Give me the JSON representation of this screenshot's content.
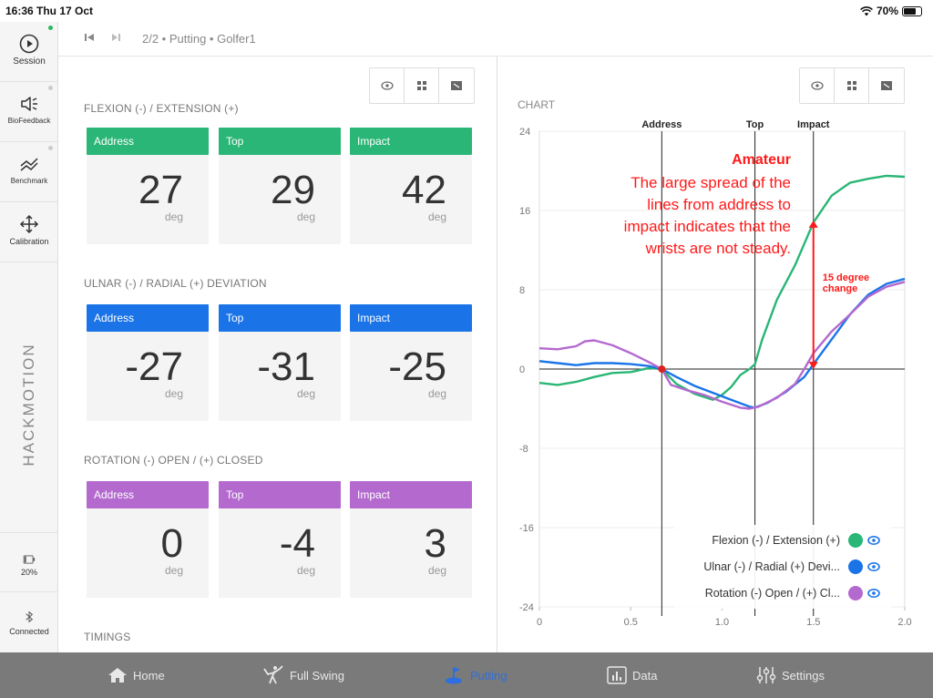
{
  "status_bar": {
    "time": "16:36  Thu 17 Oct",
    "battery": "70%",
    "battery_level": 0.7
  },
  "sidebar": {
    "items": [
      {
        "label": "Session",
        "icon": "play-circle-icon"
      },
      {
        "label": "BioFeedback",
        "icon": "speaker-icon"
      },
      {
        "label": "Benchmark",
        "icon": "benchmark-icon"
      },
      {
        "label": "Calibration",
        "icon": "move-arrows-icon"
      }
    ],
    "logo": "HACKMOTION",
    "battery": {
      "label": "20%",
      "level": 0.2
    },
    "bluetooth": {
      "label": "Connected",
      "icon": "bluetooth-icon"
    }
  },
  "breadcrumb": {
    "text": "2/2  •  Putting  •  Golfer1"
  },
  "sections": [
    {
      "title": "FLEXION (-) / EXTENSION (+)",
      "color": "#2ab676",
      "cards": [
        {
          "label": "Address",
          "value": "27",
          "unit": "deg"
        },
        {
          "label": "Top",
          "value": "29",
          "unit": "deg"
        },
        {
          "label": "Impact",
          "value": "42",
          "unit": "deg"
        }
      ]
    },
    {
      "title": "ULNAR (-) / RADIAL (+) DEVIATION",
      "color": "#1a74e8",
      "cards": [
        {
          "label": "Address",
          "value": "-27",
          "unit": "deg"
        },
        {
          "label": "Top",
          "value": "-31",
          "unit": "deg"
        },
        {
          "label": "Impact",
          "value": "-25",
          "unit": "deg"
        }
      ]
    },
    {
      "title": "ROTATION (-) OPEN / (+) CLOSED",
      "color": "#b469cf",
      "cards": [
        {
          "label": "Address",
          "value": "0",
          "unit": "deg"
        },
        {
          "label": "Top",
          "value": "-4",
          "unit": "deg"
        },
        {
          "label": "Impact",
          "value": "3",
          "unit": "deg"
        }
      ]
    }
  ],
  "timings_title": "TIMINGS",
  "chart_title": "CHART",
  "chart_data": {
    "type": "line",
    "xlim": [
      0,
      2.0
    ],
    "ylim": [
      -24,
      24
    ],
    "x_ticks": [
      "0",
      "0.5",
      "1.0",
      "1.5",
      "2.0"
    ],
    "y_ticks": [
      "24",
      "16",
      "8",
      "0",
      "-8",
      "-16",
      "-24"
    ],
    "events": [
      {
        "label": "Address",
        "x": 0.67
      },
      {
        "label": "Top",
        "x": 1.18
      },
      {
        "label": "Impact",
        "x": 1.5
      }
    ],
    "series": [
      {
        "name": "Flexion (-) / Extension (+)",
        "color": "#2ab676",
        "points": [
          [
            0,
            -1.4
          ],
          [
            0.1,
            -1.6
          ],
          [
            0.2,
            -1.3
          ],
          [
            0.3,
            -0.8
          ],
          [
            0.4,
            -0.4
          ],
          [
            0.5,
            -0.3
          ],
          [
            0.6,
            0.1
          ],
          [
            0.67,
            0
          ],
          [
            0.75,
            -1.5
          ],
          [
            0.85,
            -2.5
          ],
          [
            0.95,
            -3.1
          ],
          [
            1.0,
            -2.6
          ],
          [
            1.05,
            -1.8
          ],
          [
            1.1,
            -0.6
          ],
          [
            1.15,
            0
          ],
          [
            1.18,
            0.5
          ],
          [
            1.22,
            3
          ],
          [
            1.3,
            7
          ],
          [
            1.4,
            10.5
          ],
          [
            1.5,
            14.8
          ],
          [
            1.6,
            17.5
          ],
          [
            1.7,
            18.8
          ],
          [
            1.8,
            19.2
          ],
          [
            1.9,
            19.5
          ],
          [
            2.0,
            19.4
          ]
        ]
      },
      {
        "name": "Ulnar (-) / Radial (+) Devi...",
        "color": "#1a74e8",
        "points": [
          [
            0,
            0.8
          ],
          [
            0.1,
            0.6
          ],
          [
            0.2,
            0.4
          ],
          [
            0.3,
            0.6
          ],
          [
            0.4,
            0.6
          ],
          [
            0.5,
            0.5
          ],
          [
            0.6,
            0.3
          ],
          [
            0.67,
            0
          ],
          [
            0.75,
            -0.8
          ],
          [
            0.85,
            -1.7
          ],
          [
            0.95,
            -2.4
          ],
          [
            1.05,
            -3.1
          ],
          [
            1.15,
            -3.8
          ],
          [
            1.18,
            -3.9
          ],
          [
            1.25,
            -3.4
          ],
          [
            1.35,
            -2.3
          ],
          [
            1.45,
            -0.8
          ],
          [
            1.5,
            0.5
          ],
          [
            1.6,
            3
          ],
          [
            1.7,
            5.5
          ],
          [
            1.8,
            7.5
          ],
          [
            1.9,
            8.6
          ],
          [
            2.0,
            9.1
          ]
        ]
      },
      {
        "name": "Rotation (-) Open / (+) Cl...",
        "color": "#b469cf",
        "points": [
          [
            0,
            2.1
          ],
          [
            0.1,
            2.0
          ],
          [
            0.2,
            2.3
          ],
          [
            0.25,
            2.8
          ],
          [
            0.3,
            2.9
          ],
          [
            0.4,
            2.4
          ],
          [
            0.5,
            1.6
          ],
          [
            0.6,
            0.7
          ],
          [
            0.67,
            0
          ],
          [
            0.72,
            -1.6
          ],
          [
            0.8,
            -2.1
          ],
          [
            0.9,
            -2.6
          ],
          [
            1.0,
            -3.3
          ],
          [
            1.1,
            -3.9
          ],
          [
            1.15,
            -4
          ],
          [
            1.2,
            -3.8
          ],
          [
            1.3,
            -2.9
          ],
          [
            1.4,
            -1.5
          ],
          [
            1.45,
            0
          ],
          [
            1.5,
            1.6
          ],
          [
            1.6,
            3.8
          ],
          [
            1.7,
            5.5
          ],
          [
            1.8,
            7.3
          ],
          [
            1.9,
            8.3
          ],
          [
            2.0,
            8.8
          ]
        ]
      }
    ],
    "annotation": {
      "title": "Amateur",
      "lines": [
        "The large spread of the",
        "lines from address to",
        "impact indicates that the",
        "wrists are not steady."
      ],
      "arrow_label": [
        "15 degree",
        "change"
      ],
      "arrow_from": [
        1.5,
        0
      ],
      "arrow_to": [
        1.5,
        15
      ],
      "color": "#ff1a1a"
    },
    "legend_position": "bottom-right"
  },
  "tabs": [
    {
      "label": "Home",
      "icon": "home-icon"
    },
    {
      "label": "Full Swing",
      "icon": "full-swing-icon"
    },
    {
      "label": "Putting",
      "icon": "putting-icon",
      "active": true
    },
    {
      "label": "Data",
      "icon": "data-chart-icon"
    },
    {
      "label": "Settings",
      "icon": "sliders-icon"
    }
  ]
}
